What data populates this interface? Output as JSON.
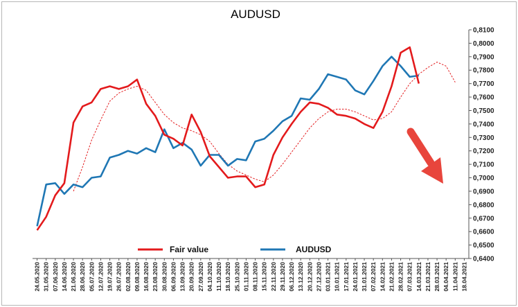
{
  "chart_data": {
    "type": "line",
    "title": "AUDUSD",
    "xlabel": "",
    "ylabel": "",
    "ylim": [
      0.64,
      0.81
    ],
    "y_ticks": [
      "0,6400",
      "0,6500",
      "0,6600",
      "0,6700",
      "0,6800",
      "0,6900",
      "0,7000",
      "0,7100",
      "0,7200",
      "0,7300",
      "0,7400",
      "0,7500",
      "0,7600",
      "0,7700",
      "0,7800",
      "0,7900",
      "0,8000",
      "0,8100"
    ],
    "x_ticks": [
      "24.05.2020",
      "31.05.2020",
      "07.06.2020",
      "14.06.2020",
      "21.06.2020",
      "28.06.2020",
      "05.07.2020",
      "12.07.2020",
      "19.07.2020",
      "26.07.2020",
      "02.08.2020",
      "09.08.2020",
      "16.08.2020",
      "23.08.2020",
      "30.08.2020",
      "06.09.2020",
      "13.09.2020",
      "20.09.2020",
      "27.09.2020",
      "04.10.2020",
      "11.10.2020",
      "18.10.2020",
      "25.10.2020",
      "01.11.2020",
      "08.11.2020",
      "15.11.2020",
      "22.11.2020",
      "29.11.2020",
      "06.12.2020",
      "13.12.2020",
      "20.12.2020",
      "27.12.2020",
      "03.01.2021",
      "10.01.2021",
      "17.01.2021",
      "24.01.2021",
      "31.01.2021",
      "07.02.2021",
      "14.02.2021",
      "21.02.2021",
      "28.02.2021",
      "07.03.2021",
      "14.03.2021",
      "21.03.2021",
      "28.03.2021",
      "04.04.2021",
      "11.04.2021",
      "18.04.2021"
    ],
    "grid": false,
    "legend_position": "bottom",
    "y_axis_side": "right",
    "series": [
      {
        "name": "Fair value",
        "color": "#e31a1c",
        "style": "solid",
        "values": [
          0.661,
          0.671,
          0.687,
          0.696,
          0.741,
          0.753,
          0.756,
          0.766,
          0.768,
          0.766,
          0.768,
          0.773,
          0.755,
          0.746,
          0.732,
          0.729,
          0.724,
          0.747,
          0.734,
          0.716,
          0.708,
          0.7,
          0.701,
          0.701,
          0.693,
          0.695,
          0.717,
          0.73,
          0.74,
          0.749,
          0.756,
          0.755,
          0.752,
          0.747,
          0.746,
          0.744,
          0.74,
          0.737,
          0.749,
          0.768,
          0.793,
          0.797,
          0.77,
          null,
          null,
          null,
          null,
          null
        ]
      },
      {
        "name": "AUDUSD",
        "color": "#1f77b4",
        "style": "solid",
        "values": [
          0.664,
          0.695,
          0.696,
          0.688,
          0.695,
          0.693,
          0.7,
          0.701,
          0.715,
          0.717,
          0.72,
          0.718,
          0.722,
          0.719,
          0.736,
          0.722,
          0.726,
          0.721,
          0.709,
          0.717,
          0.717,
          0.709,
          0.714,
          0.713,
          0.727,
          0.729,
          0.735,
          0.742,
          0.746,
          0.759,
          0.758,
          0.766,
          0.777,
          0.775,
          0.773,
          0.765,
          0.762,
          0.772,
          0.783,
          0.79,
          0.783,
          0.775,
          0.776,
          null,
          null,
          null,
          null,
          null
        ]
      },
      {
        "name": "",
        "color": "#e31a1c",
        "style": "dotted",
        "values": [
          null,
          null,
          null,
          null,
          0.69,
          0.708,
          0.728,
          0.743,
          0.757,
          0.763,
          0.766,
          0.768,
          0.765,
          0.756,
          0.747,
          0.741,
          0.737,
          0.735,
          0.732,
          0.727,
          0.718,
          0.71,
          0.705,
          0.702,
          0.699,
          0.697,
          0.702,
          0.71,
          0.719,
          0.728,
          0.737,
          0.744,
          0.749,
          0.751,
          0.751,
          0.749,
          0.746,
          0.743,
          0.744,
          0.749,
          0.76,
          0.77,
          0.777,
          0.782,
          0.786,
          0.783,
          0.771,
          null
        ]
      }
    ],
    "annotations": [
      {
        "type": "arrow",
        "color": "#e8453c",
        "direction": "down-right"
      }
    ]
  },
  "legend": {
    "fair_value_label": "Fair value",
    "audusd_label": "AUDUSD"
  }
}
